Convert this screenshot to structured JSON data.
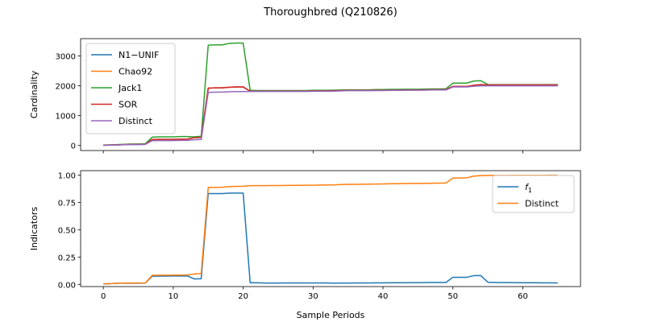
{
  "figure": {
    "title": "Thoroughbred (Q210826)"
  },
  "chart_data": [
    {
      "type": "line",
      "title": "",
      "xlabel": "",
      "ylabel": "Cardinality",
      "xlim": [
        -3.25,
        68.25
      ],
      "ylim": [
        -170,
        3580
      ],
      "xticks": [
        0,
        10,
        20,
        30,
        40,
        50,
        60
      ],
      "yticks": [
        0,
        1000,
        2000,
        3000
      ],
      "x_tick_labels_visible": false,
      "legend": "top-left",
      "grid": false,
      "x": [
        0,
        1,
        2,
        3,
        4,
        5,
        6,
        7,
        8,
        9,
        10,
        11,
        12,
        13,
        14,
        15,
        16,
        17,
        18,
        19,
        20,
        21,
        22,
        23,
        24,
        25,
        26,
        27,
        28,
        29,
        30,
        31,
        32,
        33,
        34,
        35,
        36,
        37,
        38,
        39,
        40,
        41,
        42,
        43,
        44,
        45,
        46,
        47,
        48,
        49,
        50,
        51,
        52,
        53,
        54,
        55,
        56,
        57,
        58,
        59,
        60,
        61,
        62,
        63,
        64,
        65
      ],
      "series": [
        {
          "name": "N1−UNIF",
          "color": "#1f77b4",
          "values": [
            10,
            15,
            20,
            30,
            35,
            35,
            40,
            200,
            205,
            205,
            205,
            210,
            210,
            260,
            270,
            1920,
            1930,
            1930,
            1950,
            1960,
            1960,
            1820,
            1820,
            1820,
            1820,
            1820,
            1820,
            1820,
            1820,
            1820,
            1830,
            1830,
            1830,
            1835,
            1840,
            1845,
            1845,
            1845,
            1845,
            1850,
            1850,
            1855,
            1855,
            1860,
            1860,
            1860,
            1865,
            1870,
            1870,
            1875,
            1980,
            1980,
            1980,
            2020,
            2040,
            2030,
            2030,
            2030,
            2030,
            2030,
            2030,
            2030,
            2030,
            2030,
            2030,
            2030
          ]
        },
        {
          "name": "Chao92",
          "color": "#ff7f0e",
          "values": [
            10,
            15,
            20,
            30,
            35,
            35,
            40,
            200,
            205,
            205,
            205,
            210,
            210,
            260,
            270,
            1920,
            1930,
            1930,
            1950,
            1960,
            1960,
            1820,
            1820,
            1820,
            1820,
            1820,
            1820,
            1820,
            1820,
            1820,
            1830,
            1830,
            1830,
            1835,
            1840,
            1845,
            1845,
            1845,
            1845,
            1850,
            1850,
            1855,
            1855,
            1860,
            1860,
            1860,
            1865,
            1870,
            1870,
            1875,
            1980,
            1980,
            1980,
            2020,
            2040,
            2030,
            2030,
            2030,
            2030,
            2030,
            2030,
            2030,
            2030,
            2030,
            2030,
            2030
          ]
        },
        {
          "name": "Jack1",
          "color": "#2ca02c",
          "values": [
            15,
            20,
            30,
            40,
            50,
            50,
            55,
            280,
            290,
            290,
            290,
            300,
            300,
            290,
            310,
            3360,
            3370,
            3370,
            3420,
            3430,
            3430,
            1850,
            1840,
            1840,
            1840,
            1840,
            1840,
            1840,
            1840,
            1840,
            1850,
            1850,
            1850,
            1855,
            1860,
            1865,
            1865,
            1865,
            1865,
            1875,
            1875,
            1880,
            1880,
            1885,
            1885,
            1885,
            1890,
            1895,
            1895,
            1900,
            2090,
            2090,
            2090,
            2160,
            2170,
            2040,
            2040,
            2040,
            2040,
            2040,
            2040,
            2040,
            2040,
            2040,
            2040,
            2040
          ]
        },
        {
          "name": "SOR",
          "color": "#d62728",
          "values": [
            10,
            15,
            20,
            30,
            35,
            35,
            40,
            200,
            205,
            205,
            205,
            210,
            210,
            260,
            270,
            1920,
            1930,
            1930,
            1950,
            1960,
            1960,
            1820,
            1820,
            1820,
            1820,
            1820,
            1820,
            1820,
            1820,
            1820,
            1830,
            1830,
            1830,
            1835,
            1840,
            1845,
            1845,
            1845,
            1845,
            1850,
            1850,
            1855,
            1855,
            1860,
            1860,
            1860,
            1865,
            1870,
            1870,
            1875,
            1980,
            1980,
            1980,
            2020,
            2040,
            2030,
            2030,
            2030,
            2030,
            2030,
            2030,
            2030,
            2030,
            2030,
            2030,
            2030
          ]
        },
        {
          "name": "Distinct",
          "color": "#9467bd",
          "values": [
            5,
            10,
            15,
            25,
            30,
            30,
            35,
            160,
            165,
            165,
            165,
            170,
            170,
            190,
            200,
            1780,
            1785,
            1790,
            1800,
            1805,
            1805,
            1810,
            1810,
            1810,
            1810,
            1810,
            1810,
            1810,
            1810,
            1810,
            1815,
            1815,
            1815,
            1820,
            1830,
            1835,
            1835,
            1835,
            1835,
            1840,
            1840,
            1845,
            1845,
            1850,
            1850,
            1850,
            1855,
            1860,
            1860,
            1860,
            1960,
            1960,
            1960,
            1985,
            2000,
            2000,
            2000,
            2000,
            2000,
            2000,
            2000,
            2000,
            2000,
            2000,
            2000,
            2000
          ]
        }
      ]
    },
    {
      "type": "line",
      "title": "",
      "xlabel": "Sample Periods",
      "ylabel": "Indicators",
      "xlim": [
        -3.25,
        68.25
      ],
      "ylim": [
        -0.02,
        1.04
      ],
      "xticks": [
        0,
        10,
        20,
        30,
        40,
        50,
        60
      ],
      "yticks": [
        0.0,
        0.25,
        0.5,
        0.75,
        1.0
      ],
      "ytick_labels": [
        "0.00",
        "0.25",
        "0.50",
        "0.75",
        "1.00"
      ],
      "legend": "top-right",
      "grid": false,
      "x": [
        0,
        1,
        2,
        3,
        4,
        5,
        6,
        7,
        8,
        9,
        10,
        11,
        12,
        13,
        14,
        15,
        16,
        17,
        18,
        19,
        20,
        21,
        22,
        23,
        24,
        25,
        26,
        27,
        28,
        29,
        30,
        31,
        32,
        33,
        34,
        35,
        36,
        37,
        38,
        39,
        40,
        41,
        42,
        43,
        44,
        45,
        46,
        47,
        48,
        49,
        50,
        51,
        52,
        53,
        54,
        55,
        56,
        57,
        58,
        59,
        60,
        61,
        62,
        63,
        64,
        65
      ],
      "series": [
        {
          "name": "f1",
          "label_main": "f",
          "label_sub": "1",
          "color": "#1f77b4",
          "values": [
            0.005,
            0.007,
            0.01,
            0.01,
            0.01,
            0.01,
            0.012,
            0.075,
            0.076,
            0.076,
            0.077,
            0.077,
            0.078,
            0.05,
            0.052,
            0.83,
            0.83,
            0.83,
            0.835,
            0.835,
            0.835,
            0.015,
            0.015,
            0.012,
            0.012,
            0.012,
            0.013,
            0.013,
            0.013,
            0.013,
            0.013,
            0.013,
            0.013,
            0.011,
            0.012,
            0.012,
            0.013,
            0.013,
            0.013,
            0.014,
            0.014,
            0.015,
            0.015,
            0.015,
            0.016,
            0.016,
            0.017,
            0.018,
            0.018,
            0.018,
            0.065,
            0.065,
            0.065,
            0.08,
            0.08,
            0.02,
            0.018,
            0.017,
            0.017,
            0.016,
            0.015,
            0.015,
            0.015,
            0.014,
            0.014,
            0.013
          ]
        },
        {
          "name": "Distinct",
          "color": "#ff7f0e",
          "values": [
            0.005,
            0.007,
            0.01,
            0.012,
            0.012,
            0.013,
            0.013,
            0.083,
            0.084,
            0.084,
            0.085,
            0.085,
            0.086,
            0.095,
            0.1,
            0.886,
            0.887,
            0.888,
            0.895,
            0.896,
            0.897,
            0.903,
            0.903,
            0.903,
            0.904,
            0.904,
            0.905,
            0.906,
            0.906,
            0.907,
            0.907,
            0.908,
            0.909,
            0.91,
            0.913,
            0.915,
            0.915,
            0.916,
            0.917,
            0.918,
            0.919,
            0.92,
            0.921,
            0.922,
            0.923,
            0.923,
            0.924,
            0.925,
            0.926,
            0.927,
            0.972,
            0.973,
            0.975,
            0.99,
            0.995,
            0.996,
            0.997,
            0.997,
            0.997,
            0.998,
            0.998,
            0.998,
            0.998,
            0.998,
            0.999,
            0.999
          ]
        }
      ]
    }
  ]
}
